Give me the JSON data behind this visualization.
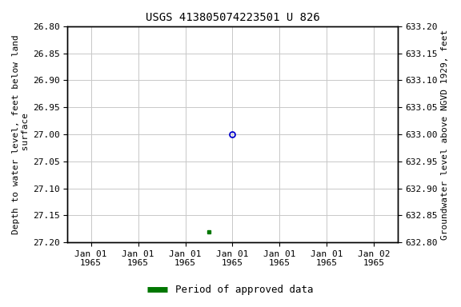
{
  "title": "USGS 413805074223501 U 826",
  "left_ylabel": "Depth to water level, feet below land\n surface",
  "right_ylabel": "Groundwater level above NGVD 1929, feet",
  "ylim_left": [
    26.8,
    27.2
  ],
  "ylim_right": [
    632.8,
    633.2
  ],
  "yticks_left": [
    26.8,
    26.85,
    26.9,
    26.95,
    27.0,
    27.05,
    27.1,
    27.15,
    27.2
  ],
  "yticks_right": [
    632.8,
    632.85,
    632.9,
    632.95,
    633.0,
    633.05,
    633.1,
    633.15,
    633.2
  ],
  "unapproved_depth": 27.0,
  "approved_depth": 27.18,
  "background_color": "#ffffff",
  "grid_color": "#c8c8c8",
  "unapproved_color": "#0000cc",
  "approved_color": "#007700",
  "legend_label": "Period of approved data",
  "title_fontsize": 10,
  "axis_label_fontsize": 8,
  "tick_fontsize": 8,
  "x_tick_labels": [
    "Jan 01\n1965",
    "Jan 01\n1965",
    "Jan 01\n1965",
    "Jan 01\n1965",
    "Jan 01\n1965",
    "Jan 01\n1965",
    "Jan 02\n1965"
  ],
  "x_tick_positions": [
    0.0,
    1.0,
    2.0,
    3.0,
    4.0,
    5.0,
    6.0
  ],
  "data_point_x": 3.0,
  "approved_point_x": 3.0
}
